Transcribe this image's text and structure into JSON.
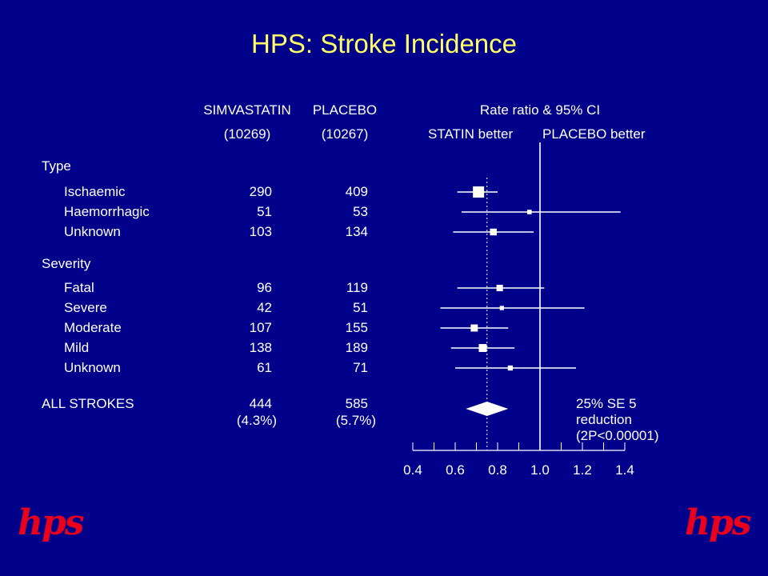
{
  "title": "HPS: Stroke Incidence",
  "headers": {
    "col1": "SIMVASTATIN",
    "col1_n": "(10269)",
    "col2": "PLACEBO",
    "col2_n": "(10267)",
    "ratio": "Rate ratio & 95% CI",
    "left_better": "STATIN better",
    "right_better": "PLACEBO better"
  },
  "sections": {
    "type": "Type",
    "severity": "Severity"
  },
  "logo_text": "hps",
  "chart_data": {
    "type": "forest",
    "title": "HPS: Stroke Incidence",
    "xlabel": "Rate ratio & 95% CI",
    "x_ticks": [
      "0.4",
      "0.6",
      "0.8",
      "1.0",
      "1.2",
      "1.4"
    ],
    "xlim": [
      0.4,
      1.4
    ],
    "reference_line": 1.0,
    "overall_line": 0.75,
    "rows": [
      {
        "label": "Ischaemic",
        "section": "Type",
        "simvastatin": "290",
        "placebo": "409",
        "estimate": 0.71,
        "lo": 0.61,
        "hi": 0.8
      },
      {
        "label": "Haemorrhagic",
        "section": "Type",
        "simvastatin": "51",
        "placebo": "53",
        "estimate": 0.95,
        "lo": 0.63,
        "hi": 1.38
      },
      {
        "label": "Unknown",
        "section": "Type",
        "simvastatin": "103",
        "placebo": "134",
        "estimate": 0.78,
        "lo": 0.59,
        "hi": 0.97
      },
      {
        "label": "Fatal",
        "section": "Severity",
        "simvastatin": "96",
        "placebo": "119",
        "estimate": 0.81,
        "lo": 0.61,
        "hi": 1.02
      },
      {
        "label": "Severe",
        "section": "Severity",
        "simvastatin": "42",
        "placebo": "51",
        "estimate": 0.82,
        "lo": 0.53,
        "hi": 1.21
      },
      {
        "label": "Moderate",
        "section": "Severity",
        "simvastatin": "107",
        "placebo": "155",
        "estimate": 0.69,
        "lo": 0.53,
        "hi": 0.85
      },
      {
        "label": "Mild",
        "section": "Severity",
        "simvastatin": "138",
        "placebo": "189",
        "estimate": 0.73,
        "lo": 0.58,
        "hi": 0.88
      },
      {
        "label": "Unknown",
        "section": "Severity",
        "simvastatin": "61",
        "placebo": "71",
        "estimate": 0.86,
        "lo": 0.6,
        "hi": 1.17
      }
    ],
    "overall": {
      "label": "ALL STROKES",
      "simvastatin": "444",
      "simvastatin_pct": "(4.3%)",
      "placebo": "585",
      "placebo_pct": "(5.7%)",
      "estimate": 0.75,
      "lo": 0.65,
      "hi": 0.85
    },
    "annotation": [
      "25% SE 5",
      "reduction",
      "(2P<0.00001)"
    ]
  }
}
